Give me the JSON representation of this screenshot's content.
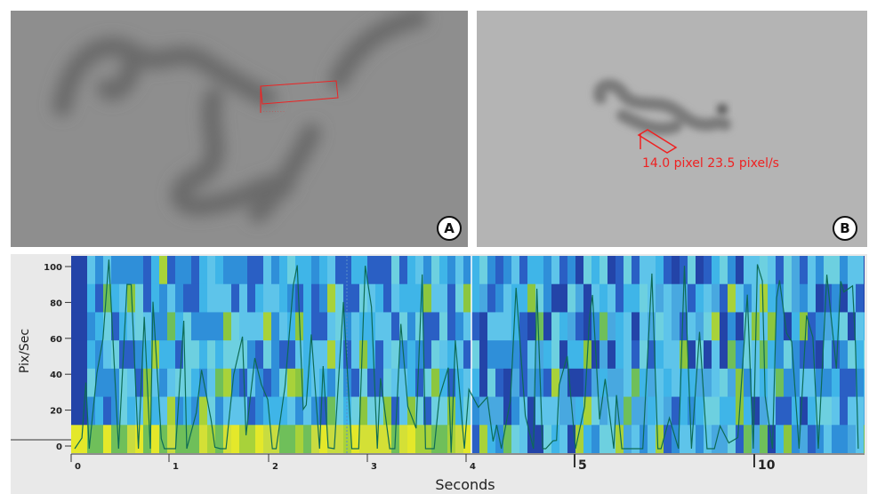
{
  "panels": [
    {
      "label": "A"
    },
    {
      "label": "B",
      "annotation": "14.0 pixel 23.5 pixel/s"
    }
  ],
  "plot": {
    "y_axis_label": "Pix/Sec",
    "x_axis_label": "Seconds",
    "y_tick_labels": [
      "100",
      "80",
      "60",
      "40",
      "20",
      "0"
    ],
    "x_tick_labels": [
      "0",
      "1",
      "2",
      "3",
      "4",
      "5",
      "10"
    ]
  }
}
